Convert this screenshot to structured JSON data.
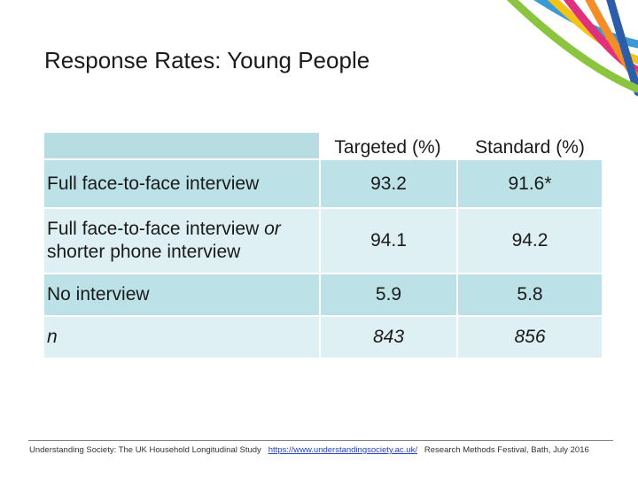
{
  "slide": {
    "title": "Response Rates: Young People"
  },
  "table": {
    "columns": [
      "Targeted (%)",
      "Standard (%)"
    ],
    "rows": [
      {
        "label": "Full face-to-face interview",
        "label_italic_part": "",
        "label_rest": "",
        "targeted": "93.2",
        "standard": "91.6*"
      },
      {
        "label": "Full face-to-face interview ",
        "label_italic_part": "or",
        "label_rest": "shorter phone interview",
        "targeted": "94.1",
        "standard": "94.2"
      },
      {
        "label": "No interview",
        "label_italic_part": "",
        "label_rest": "",
        "targeted": "5.9",
        "standard": "5.8"
      },
      {
        "label": "",
        "label_italic_part": "n",
        "label_rest": "",
        "targeted": "843",
        "standard": "856"
      }
    ]
  },
  "footer": {
    "left": "Understanding Society: The UK Household Longitudinal Study",
    "link": "https://www.understandingsociety.ac.uk/",
    "right": "Research Methods Festival, Bath, July 2016"
  },
  "colors": {
    "row_dark": "#bce2e7",
    "row_light": "#def0f3",
    "arc_colors": [
      "#8cc63f",
      "#f7941d",
      "#e8258a",
      "#00a9e0",
      "#1d4f91",
      "#ffcc00"
    ]
  }
}
